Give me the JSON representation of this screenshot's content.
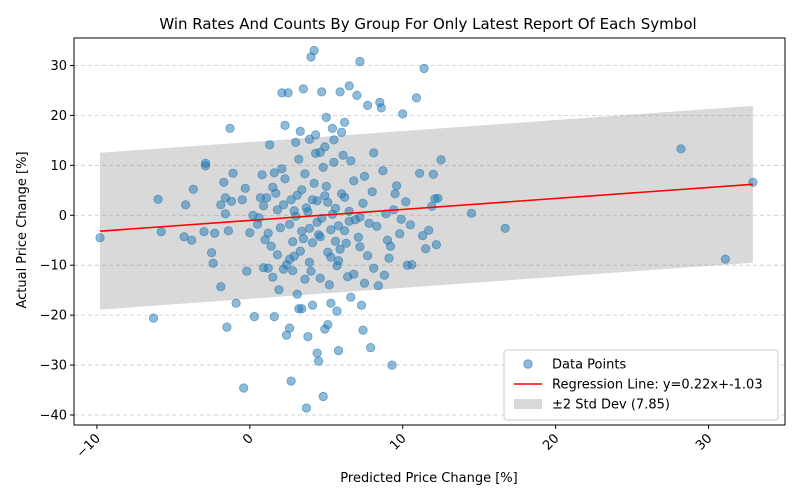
{
  "chart_data": {
    "type": "scatter",
    "title": "Win Rates And Counts By Group For Only Latest Report Of Each Symbol",
    "xlabel": "Predicted Price Change [%]",
    "ylabel": "Actual Price Change [%]",
    "xlim": [
      -11.5,
      35
    ],
    "ylim": [
      -42,
      35.5
    ],
    "x_ticks": [
      -10,
      0,
      10,
      20,
      30
    ],
    "y_ticks": [
      -40,
      -30,
      -20,
      -10,
      0,
      10,
      20,
      30
    ],
    "x_tick_labels": [
      "−10",
      "0",
      "10",
      "20",
      "30"
    ],
    "y_tick_labels": [
      "−40",
      "−30",
      "−20",
      "−10",
      "0",
      "10",
      "20",
      "30"
    ],
    "x_tick_rotation_deg": 45,
    "grid": "y-dashed",
    "legend_position": "bottom-right",
    "colors": {
      "points": "#1f77b4",
      "regression": "#ff0000",
      "band": "#808080"
    },
    "regression": {
      "slope": 0.22,
      "intercept": -1.03,
      "x_range": [
        -9.8,
        32.9
      ]
    },
    "std_band": {
      "width": 7.85,
      "multiplier": 2
    },
    "legend": [
      {
        "label": "Data Points",
        "kind": "marker"
      },
      {
        "label": "Regression Line: y=0.22x+-1.03",
        "kind": "line"
      },
      {
        "label": "±2 Std Dev (7.85)",
        "kind": "patch"
      }
    ],
    "series": [
      {
        "name": "Data Points",
        "points": [
          [
            -9.8,
            -4.5
          ],
          [
            -6.3,
            -20.6
          ],
          [
            -6.0,
            3.2
          ],
          [
            -5.8,
            -3.3
          ],
          [
            -4.2,
            2.1
          ],
          [
            -4.3,
            -4.3
          ],
          [
            -3.8,
            -5.0
          ],
          [
            -3.7,
            5.2
          ],
          [
            -2.9,
            10.4
          ],
          [
            -2.9,
            9.9
          ],
          [
            -3.0,
            -3.3
          ],
          [
            -2.4,
            -9.6
          ],
          [
            -2.5,
            -7.5
          ],
          [
            -2.3,
            -3.6
          ],
          [
            -1.9,
            2.1
          ],
          [
            -1.9,
            -14.3
          ],
          [
            -1.7,
            6.6
          ],
          [
            -1.6,
            3.5
          ],
          [
            -1.6,
            0.3
          ],
          [
            -1.4,
            -3.1
          ],
          [
            -1.5,
            -22.4
          ],
          [
            -1.3,
            17.4
          ],
          [
            -1.2,
            2.8
          ],
          [
            -1.1,
            8.4
          ],
          [
            -0.9,
            -17.6
          ],
          [
            -0.5,
            3.1
          ],
          [
            -0.4,
            -34.6
          ],
          [
            -0.3,
            5.4
          ],
          [
            -0.2,
            -11.2
          ],
          [
            0.0,
            -3.5
          ],
          [
            0.2,
            0.0
          ],
          [
            0.3,
            -20.3
          ],
          [
            0.5,
            -1.8
          ],
          [
            0.7,
            3.5
          ],
          [
            0.8,
            8.1
          ],
          [
            0.9,
            -10.5
          ],
          [
            1.0,
            -4.9
          ],
          [
            1.1,
            3.5
          ],
          [
            1.2,
            -10.6
          ],
          [
            1.3,
            14.1
          ],
          [
            1.5,
            -12.4
          ],
          [
            1.6,
            -20.3
          ],
          [
            1.6,
            8.5
          ],
          [
            1.8,
            1.1
          ],
          [
            1.9,
            -14.9
          ],
          [
            2.1,
            24.5
          ],
          [
            2.2,
            -10.8
          ],
          [
            2.3,
            18.0
          ],
          [
            2.4,
            -24.0
          ],
          [
            2.5,
            24.5
          ],
          [
            2.6,
            -22.6
          ],
          [
            2.7,
            -33.2
          ],
          [
            2.8,
            -11.1
          ],
          [
            2.9,
            -8.2
          ],
          [
            3.0,
            14.6
          ],
          [
            3.1,
            -15.8
          ],
          [
            3.2,
            -18.7
          ],
          [
            3.3,
            16.8
          ],
          [
            3.4,
            -18.7
          ],
          [
            3.5,
            25.3
          ],
          [
            3.6,
            -12.8
          ],
          [
            3.7,
            -38.6
          ],
          [
            3.8,
            -24.3
          ],
          [
            3.9,
            15.2
          ],
          [
            4.0,
            31.7
          ],
          [
            4.1,
            -18.0
          ],
          [
            4.2,
            33.0
          ],
          [
            4.3,
            16.1
          ],
          [
            4.4,
            -27.6
          ],
          [
            4.5,
            -29.2
          ],
          [
            4.6,
            12.6
          ],
          [
            4.7,
            24.7
          ],
          [
            4.8,
            -36.3
          ],
          [
            4.9,
            -22.8
          ],
          [
            5.0,
            19.6
          ],
          [
            5.1,
            -21.9
          ],
          [
            5.3,
            -17.6
          ],
          [
            5.4,
            17.4
          ],
          [
            5.5,
            15.1
          ],
          [
            5.7,
            -19.2
          ],
          [
            5.8,
            -27.1
          ],
          [
            5.9,
            24.7
          ],
          [
            6.0,
            16.6
          ],
          [
            6.2,
            18.6
          ],
          [
            6.4,
            -12.3
          ],
          [
            6.5,
            25.9
          ],
          [
            6.6,
            -16.4
          ],
          [
            6.8,
            -11.8
          ],
          [
            7.0,
            24.0
          ],
          [
            7.2,
            30.8
          ],
          [
            7.3,
            -18.0
          ],
          [
            7.4,
            -23.0
          ],
          [
            7.5,
            -13.6
          ],
          [
            7.7,
            22.0
          ],
          [
            7.9,
            -26.5
          ],
          [
            8.1,
            -10.6
          ],
          [
            8.4,
            -14.1
          ],
          [
            8.5,
            22.6
          ],
          [
            8.6,
            21.5
          ],
          [
            9.1,
            -8.6
          ],
          [
            9.3,
            -30.0
          ],
          [
            9.5,
            4.3
          ],
          [
            10.0,
            20.3
          ],
          [
            10.3,
            -10.0
          ],
          [
            10.6,
            -9.9
          ],
          [
            10.9,
            23.5
          ],
          [
            11.1,
            8.4
          ],
          [
            11.3,
            -4.1
          ],
          [
            11.4,
            29.4
          ],
          [
            11.5,
            -6.7
          ],
          [
            11.7,
            -3.0
          ],
          [
            11.9,
            1.8
          ],
          [
            12.0,
            8.2
          ],
          [
            12.1,
            3.3
          ],
          [
            12.2,
            -5.9
          ],
          [
            12.3,
            3.4
          ],
          [
            12.5,
            11.1
          ],
          [
            14.5,
            0.4
          ],
          [
            16.7,
            -2.6
          ],
          [
            28.2,
            13.3
          ],
          [
            31.1,
            -8.8
          ],
          [
            32.9,
            6.6
          ],
          [
            2.2,
            2.1
          ],
          [
            2.6,
            -1.8
          ],
          [
            3.1,
            4.0
          ],
          [
            3.4,
            -3.2
          ],
          [
            3.8,
            0.7
          ],
          [
            4.1,
            -5.5
          ],
          [
            4.4,
            2.9
          ],
          [
            4.7,
            -0.6
          ],
          [
            5.0,
            5.8
          ],
          [
            5.3,
            -2.9
          ],
          [
            5.6,
            1.4
          ],
          [
            5.9,
            -6.8
          ],
          [
            6.2,
            3.6
          ],
          [
            6.5,
            -1.2
          ],
          [
            6.8,
            6.9
          ],
          [
            7.1,
            -4.4
          ],
          [
            7.4,
            2.4
          ],
          [
            7.7,
            -8.1
          ],
          [
            8.0,
            4.7
          ],
          [
            8.3,
            -2.2
          ],
          [
            8.7,
            8.9
          ],
          [
            9.0,
            -5.0
          ],
          [
            9.4,
            1.1
          ],
          [
            9.8,
            -3.7
          ],
          [
            3.3,
            -7.2
          ],
          [
            3.6,
            8.3
          ],
          [
            3.9,
            -9.4
          ],
          [
            4.2,
            6.4
          ],
          [
            4.5,
            -3.9
          ],
          [
            4.8,
            9.6
          ],
          [
            5.1,
            -7.4
          ],
          [
            5.4,
            0.2
          ],
          [
            5.7,
            -10.1
          ],
          [
            6.0,
            4.3
          ],
          [
            6.3,
            -5.6
          ],
          [
            6.6,
            10.9
          ],
          [
            6.9,
            -0.9
          ],
          [
            7.2,
            -6.3
          ],
          [
            7.5,
            7.8
          ],
          [
            7.8,
            -1.6
          ],
          [
            1.4,
            -6.2
          ],
          [
            1.7,
            4.4
          ],
          [
            2.0,
            -2.5
          ],
          [
            2.3,
            7.3
          ],
          [
            2.6,
            -8.8
          ],
          [
            2.9,
            0.9
          ],
          [
            3.2,
            11.2
          ],
          [
            3.5,
            -4.7
          ],
          [
            4.0,
            -11.2
          ],
          [
            4.3,
            12.4
          ],
          [
            4.6,
            -12.6
          ],
          [
            4.9,
            13.7
          ],
          [
            5.2,
            -13.9
          ],
          [
            5.5,
            10.6
          ],
          [
            5.8,
            -9.1
          ],
          [
            6.1,
            12.0
          ],
          [
            0.6,
            -0.5
          ],
          [
            0.9,
            1.9
          ],
          [
            1.2,
            -3.6
          ],
          [
            1.5,
            5.6
          ],
          [
            1.8,
            -7.9
          ],
          [
            2.1,
            9.3
          ],
          [
            2.4,
            -9.9
          ],
          [
            2.7,
            3.1
          ],
          [
            8.9,
            0.3
          ],
          [
            9.2,
            -6.2
          ],
          [
            9.6,
            5.9
          ],
          [
            9.9,
            -0.8
          ],
          [
            10.2,
            2.7
          ],
          [
            10.5,
            -1.9
          ],
          [
            8.1,
            12.5
          ],
          [
            8.8,
            -12.0
          ],
          [
            3.0,
            -0.2
          ],
          [
            3.7,
            1.5
          ],
          [
            4.4,
            -1.4
          ],
          [
            5.1,
            2.6
          ],
          [
            5.8,
            -2.1
          ],
          [
            6.5,
            0.8
          ],
          [
            7.2,
            -0.4
          ],
          [
            4.1,
            3.1
          ],
          [
            4.6,
            -4.3
          ],
          [
            3.4,
            5.1
          ],
          [
            5.6,
            -5.2
          ],
          [
            6.2,
            -3.1
          ],
          [
            2.8,
            -5.3
          ],
          [
            3.9,
            -2.6
          ],
          [
            4.9,
            3.9
          ],
          [
            5.3,
            -8.4
          ]
        ]
      }
    ]
  }
}
